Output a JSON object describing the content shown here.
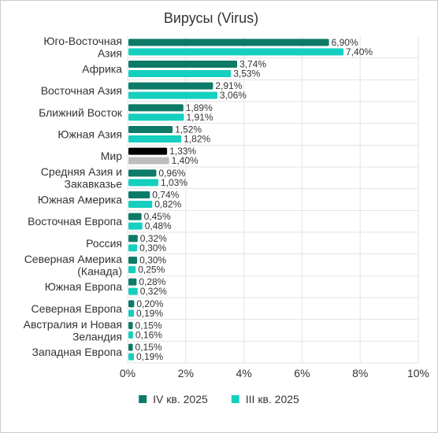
{
  "chart_data": {
    "type": "bar",
    "orientation": "horizontal",
    "title": "Вирусы (Virus)",
    "categories": [
      "Юго-Восточная Азия",
      "Африка",
      "Восточная Азия",
      "Ближний Восток",
      "Южная Азия",
      "Мир",
      "Средняя Азия и Закавказье",
      "Южная Америка",
      "Восточная Европа",
      "Россия",
      "Северная Америка (Канада)",
      "Южная Европа",
      "Северная Европа",
      "Австралия и Новая Зеландия",
      "Западная Европа"
    ],
    "category_lines": [
      [
        "Юго-Восточная",
        "Азия"
      ],
      [
        "Африка"
      ],
      [
        "Восточная Азия"
      ],
      [
        "Ближний Восток"
      ],
      [
        "Южная Азия"
      ],
      [
        "Мир"
      ],
      [
        "Средняя Азия и",
        "Закавказье"
      ],
      [
        "Южная Америка"
      ],
      [
        "Восточная Европа"
      ],
      [
        "Россия"
      ],
      [
        "Северная Америка",
        "(Канада)"
      ],
      [
        "Южная Европа"
      ],
      [
        "Северная Европа"
      ],
      [
        "Австралия и Новая",
        "Зеландия"
      ],
      [
        "Западная Европа"
      ]
    ],
    "series": [
      {
        "name": "IV кв. 2025",
        "color": "#0d7a68",
        "values": [
          6.9,
          3.74,
          2.91,
          1.89,
          1.52,
          1.33,
          0.96,
          0.74,
          0.45,
          0.32,
          0.3,
          0.28,
          0.2,
          0.15,
          0.15
        ],
        "labels": [
          "6,90%",
          "3,74%",
          "2,91%",
          "1,89%",
          "1,52%",
          "1,33%",
          "0,96%",
          "0,74%",
          "0,45%",
          "0,32%",
          "0,30%",
          "0,28%",
          "0,20%",
          "0,15%",
          "0,15%"
        ]
      },
      {
        "name": "III кв. 2025",
        "color": "#15cfbf",
        "values": [
          7.4,
          3.53,
          3.06,
          1.91,
          1.82,
          1.4,
          1.03,
          0.82,
          0.48,
          0.3,
          0.25,
          0.32,
          0.19,
          0.16,
          0.19
        ],
        "labels": [
          "7,40%",
          "3,53%",
          "3,06%",
          "1,91%",
          "1,82%",
          "1,40%",
          "1,03%",
          "0,82%",
          "0,48%",
          "0,30%",
          "0,25%",
          "0,32%",
          "0,19%",
          "0,16%",
          "0,19%"
        ]
      }
    ],
    "highlight": {
      "category_index": 5,
      "colors": [
        "#000000",
        "#bdbdbd"
      ]
    },
    "xlim": [
      0,
      10
    ],
    "xticks": [
      0,
      2,
      4,
      6,
      8,
      10
    ],
    "xtick_labels": [
      "0%",
      "2%",
      "4%",
      "6%",
      "8%",
      "10%"
    ],
    "grid": true,
    "legend_position": "bottom"
  }
}
